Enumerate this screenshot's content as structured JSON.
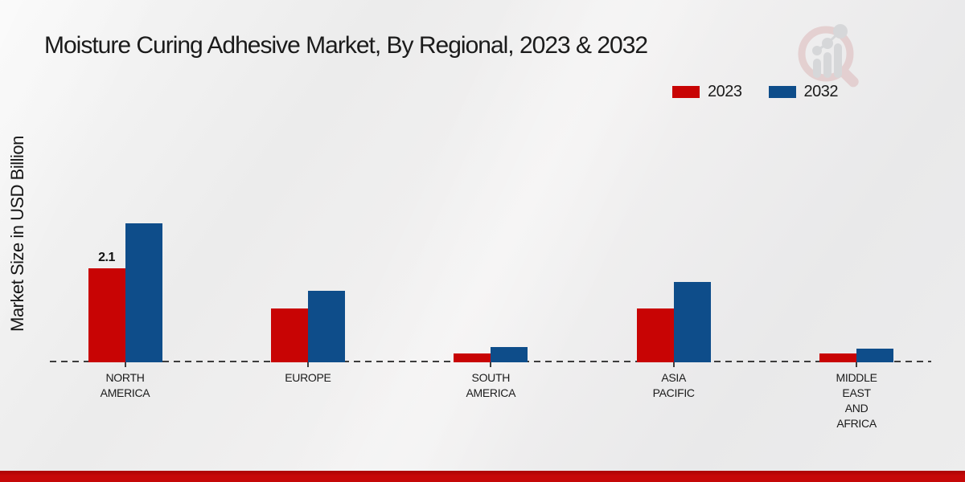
{
  "chart_data": {
    "type": "bar",
    "title": "Moisture Curing Adhesive Market, By Regional, 2023 & 2032",
    "ylabel": "Market Size in USD Billion",
    "xlabel": "",
    "categories": [
      "NORTH AMERICA",
      "EUROPE",
      "SOUTH AMERICA",
      "ASIA PACIFIC",
      "MIDDLE EAST AND AFRICA"
    ],
    "category_label_lines": [
      [
        "NORTH",
        "AMERICA"
      ],
      [
        "EUROPE"
      ],
      [
        "SOUTH",
        "AMERICA"
      ],
      [
        "ASIA",
        "PACIFIC"
      ],
      [
        "MIDDLE",
        "EAST",
        "AND",
        "AFRICA"
      ]
    ],
    "series": [
      {
        "name": "2023",
        "color": "#c80404",
        "values": [
          2.1,
          1.2,
          0.2,
          1.2,
          0.2
        ],
        "value_labels": [
          "2.1",
          null,
          null,
          null,
          null
        ]
      },
      {
        "name": "2032",
        "color": "#0e4d8a",
        "values": [
          3.1,
          1.6,
          0.35,
          1.8,
          0.3
        ],
        "value_labels": [
          null,
          null,
          null,
          null,
          null
        ]
      }
    ],
    "ylim": [
      0,
      3.5
    ],
    "grid": false,
    "y_axis_visible": false,
    "baseline_style": "dashed",
    "legend_position": "top-right"
  },
  "watermark": {
    "name": "magnifier-bar-chart-logo"
  },
  "footer": {
    "color": "#c60808"
  },
  "colors": {
    "series_2023": "#c80404",
    "series_2032": "#0e4d8a",
    "text": "#1b1b1b",
    "baseline": "#3d3d3d",
    "background": "#ededee"
  }
}
